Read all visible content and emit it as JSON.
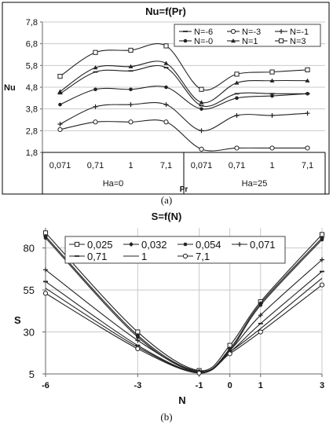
{
  "chart_data": [
    {
      "type": "line",
      "title": "Nu=f(Pr)",
      "ylabel": "Nu",
      "xlabel": "Pr",
      "caption": "(a)",
      "ylim": [
        1.8,
        7.8
      ],
      "yticks": [
        "1,8",
        "2,8",
        "3,8",
        "4,8",
        "5,8",
        "6,8",
        "7,8"
      ],
      "categories": [
        "0,071",
        "0,71",
        "1",
        "7,1",
        "0,071",
        "0,71",
        "1",
        "7,1"
      ],
      "groups": [
        "Ha=0",
        "Ha=25"
      ],
      "legend_position": "top-right",
      "series": [
        {
          "name": "N=3",
          "marker": "square",
          "values": [
            5.3,
            6.4,
            6.5,
            6.7,
            4.7,
            5.4,
            5.5,
            5.6
          ]
        },
        {
          "name": "N=1",
          "marker": "triangle",
          "values": [
            4.6,
            5.7,
            5.75,
            5.9,
            4.1,
            5.0,
            5.1,
            5.1
          ]
        },
        {
          "name": "N=-6",
          "marker": "dash",
          "values": [
            4.5,
            5.5,
            5.55,
            5.7,
            3.95,
            4.5,
            4.5,
            4.5
          ]
        },
        {
          "name": "N=-0",
          "marker": "dot",
          "values": [
            4.0,
            4.7,
            4.7,
            4.8,
            3.8,
            4.3,
            4.4,
            4.5
          ]
        },
        {
          "name": "N=-1",
          "marker": "plus",
          "values": [
            3.1,
            3.9,
            4.0,
            4.0,
            2.8,
            3.5,
            3.5,
            3.6
          ]
        },
        {
          "name": "N=-3",
          "marker": "circle",
          "values": [
            2.85,
            3.2,
            3.2,
            3.2,
            1.95,
            2.0,
            2.0,
            2.0
          ]
        }
      ]
    },
    {
      "type": "line",
      "title": "S=f(N)",
      "ylabel": "S",
      "xlabel": "N",
      "caption": "(b)",
      "ylim": [
        5,
        92
      ],
      "yticks": [
        5,
        30,
        55,
        80
      ],
      "xlim": [
        -6,
        3
      ],
      "xticks": [
        -6,
        -3,
        -1,
        0,
        1,
        3
      ],
      "legend_position": "top",
      "series": [
        {
          "name": "0,025",
          "marker": "square",
          "x": [
            -6,
            -3,
            -1,
            0,
            1,
            3
          ],
          "values": [
            89,
            30,
            7,
            22,
            48,
            88
          ]
        },
        {
          "name": "0,032",
          "marker": "diamond",
          "x": [
            -6,
            -3,
            -1,
            0,
            1,
            3
          ],
          "values": [
            87,
            28,
            6.5,
            20,
            47,
            86
          ]
        },
        {
          "name": "0,054",
          "marker": "dot",
          "x": [
            -6,
            -3,
            -1,
            0,
            1,
            3
          ],
          "values": [
            86,
            27,
            6,
            19,
            46,
            85
          ]
        },
        {
          "name": "0,071",
          "marker": "plus",
          "x": [
            -6,
            -3,
            -1,
            0,
            1,
            3
          ],
          "values": [
            67,
            25,
            6,
            19,
            40,
            73
          ]
        },
        {
          "name": "0,71",
          "marker": "dash",
          "x": [
            -6,
            -3,
            -1,
            0,
            1,
            3
          ],
          "values": [
            60,
            22,
            5.8,
            18,
            35,
            66
          ]
        },
        {
          "name": "1",
          "marker": "none",
          "x": [
            -6,
            -3,
            -1,
            0,
            1,
            3
          ],
          "values": [
            56,
            21,
            5.6,
            18,
            32,
            62
          ]
        },
        {
          "name": "7,1",
          "marker": "circle",
          "x": [
            -6,
            -3,
            -1,
            0,
            1,
            3
          ],
          "values": [
            53,
            20,
            5.5,
            17,
            30,
            58
          ]
        }
      ]
    }
  ]
}
